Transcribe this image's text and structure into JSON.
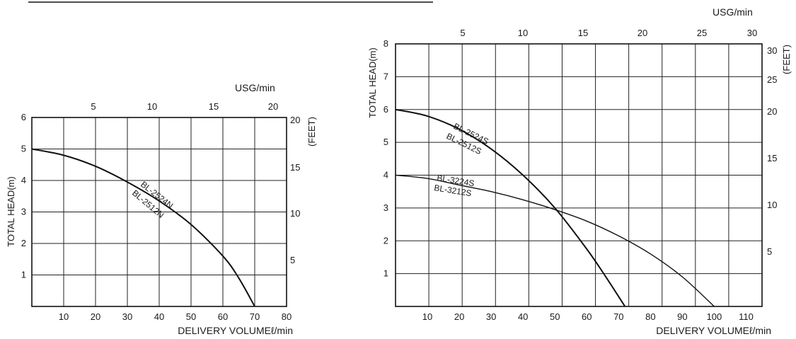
{
  "chart_data": [
    {
      "type": "line",
      "x_bottom": {
        "label": "DELIVERY VOLUMEℓ/min",
        "ticks": [
          10,
          20,
          30,
          40,
          50,
          60,
          70,
          80
        ],
        "range": [
          0,
          80
        ]
      },
      "x_top": {
        "label": "USG/min",
        "ticks": [
          5,
          10,
          15,
          20
        ]
      },
      "y_left": {
        "label": "TOTAL HEAD(m)",
        "ticks": [
          1,
          2,
          3,
          4,
          5,
          6
        ],
        "range": [
          0,
          6
        ]
      },
      "y_right": {
        "label": "(FEET)",
        "ticks": [
          5,
          10,
          15,
          20
        ]
      },
      "grid": true,
      "series": [
        {
          "name": "BL-2524N",
          "name2": "BL-2512N",
          "x": [
            0,
            10,
            20,
            30,
            40,
            50,
            60,
            65,
            70
          ],
          "y": [
            5.0,
            4.8,
            4.45,
            3.95,
            3.35,
            2.6,
            1.6,
            0.9,
            0.0
          ]
        }
      ]
    },
    {
      "type": "line",
      "x_bottom": {
        "label": "DELIVERY VOLUMEℓ/min",
        "ticks": [
          10,
          20,
          30,
          40,
          50,
          60,
          70,
          80,
          90,
          100,
          110
        ],
        "range": [
          0,
          115
        ]
      },
      "x_top": {
        "label": "USG/min",
        "ticks": [
          5,
          10,
          15,
          20,
          25,
          30
        ]
      },
      "y_left": {
        "label": "TOTAL HEAD(m)",
        "ticks": [
          1,
          2,
          3,
          4,
          5,
          6,
          7,
          8
        ],
        "range": [
          0,
          8
        ]
      },
      "y_right": {
        "label": "(FEET)",
        "ticks": [
          5,
          10,
          15,
          20,
          25,
          30
        ]
      },
      "grid": true,
      "series": [
        {
          "name": "BL-2524S",
          "name2": "BL-2512S",
          "x": [
            0,
            10,
            20,
            30,
            40,
            50,
            60,
            66,
            72
          ],
          "y": [
            6.0,
            5.8,
            5.4,
            4.8,
            4.0,
            3.0,
            1.75,
            0.9,
            0.0
          ]
        },
        {
          "name": "BL-3224S",
          "name2": "BL-3212S",
          "x": [
            0,
            10,
            20,
            30,
            40,
            50,
            60,
            70,
            80,
            90,
            100
          ],
          "y": [
            4.0,
            3.9,
            3.7,
            3.5,
            3.25,
            2.95,
            2.6,
            2.15,
            1.6,
            0.9,
            0.0
          ]
        }
      ]
    }
  ]
}
